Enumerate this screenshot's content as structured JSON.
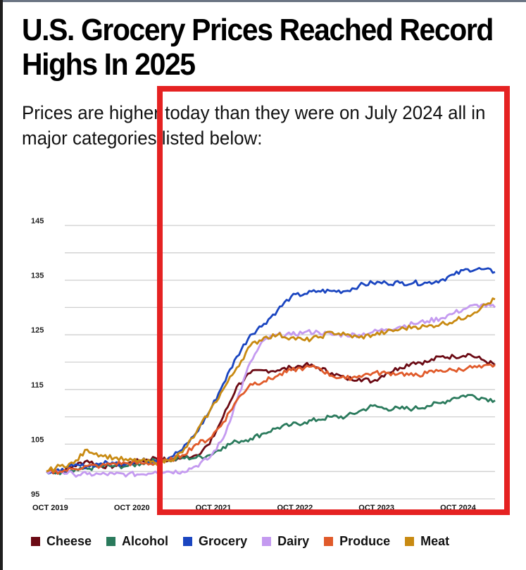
{
  "title": "U.S. Grocery Prices Reached Record Highs In 2025",
  "subtitle": "Prices are higher today than they were on July 2024 all in major categories listed below:",
  "annotation": {
    "type": "highlight-rectangle",
    "color": "#e52222"
  },
  "chart_data": {
    "type": "line",
    "title": "U.S. Grocery Prices Reached Record Highs In 2025",
    "xlabel": "",
    "ylabel": "",
    "ylim": [
      95,
      145
    ],
    "yticks": [
      95,
      105,
      115,
      125,
      135,
      145
    ],
    "grid": true,
    "x_unit": "months since Oct 2019",
    "xlim": [
      0,
      66
    ],
    "xticks": [
      {
        "x": 0,
        "label": "OCT 2019"
      },
      {
        "x": 12,
        "label": "OCT 2020"
      },
      {
        "x": 24,
        "label": "OCT 2021"
      },
      {
        "x": 36,
        "label": "OCT 2022"
      },
      {
        "x": 48,
        "label": "OCT 2023"
      },
      {
        "x": 60,
        "label": "OCT 2024"
      }
    ],
    "legend_position": "bottom",
    "x": [
      0,
      2,
      4,
      6,
      8,
      10,
      12,
      14,
      16,
      18,
      20,
      22,
      24,
      26,
      28,
      30,
      32,
      34,
      36,
      38,
      40,
      42,
      44,
      46,
      48,
      50,
      52,
      54,
      56,
      58,
      60,
      62,
      64,
      66
    ],
    "series": [
      {
        "name": "Cheese",
        "color": "#6b0a14",
        "values": [
          100,
          100,
          101,
          102,
          101,
          101,
          101.5,
          102,
          102.5,
          102,
          102.5,
          103,
          105,
          110,
          115.5,
          118,
          118.5,
          118.5,
          119,
          119.5,
          119,
          118,
          117,
          117,
          116.5,
          118,
          119,
          120,
          120,
          121,
          121,
          121.5,
          120.5,
          119.5
        ]
      },
      {
        "name": "Alcohol",
        "color": "#2a7a5c",
        "values": [
          100,
          99.5,
          100,
          100.5,
          101,
          101,
          101,
          101.5,
          102,
          102,
          102.5,
          102.5,
          103,
          104.5,
          105.5,
          106,
          107,
          108,
          108.5,
          109,
          109.5,
          110,
          110,
          111,
          112,
          111.5,
          111.5,
          111.5,
          112,
          112.5,
          113.5,
          114,
          113.5,
          113
        ]
      },
      {
        "name": "Grocery",
        "color": "#1a45c0",
        "values": [
          100,
          100,
          101,
          101,
          101.5,
          101.5,
          101.5,
          102,
          102,
          102.5,
          104,
          107,
          111,
          116,
          121,
          125,
          127,
          129.5,
          132,
          132.5,
          133,
          133,
          133,
          134,
          134.5,
          134.5,
          134.5,
          134.5,
          134.5,
          135,
          136,
          137,
          137,
          136.5
        ]
      },
      {
        "name": "Dairy",
        "color": "#c49af0",
        "values": [
          100,
          100,
          99.5,
          99.5,
          99.5,
          99.5,
          99.5,
          99.5,
          100,
          100,
          100,
          101,
          102.5,
          106,
          113,
          120,
          124,
          125,
          125,
          125.5,
          125.5,
          125,
          125,
          125,
          125.5,
          126,
          126.5,
          127,
          127.5,
          128,
          129,
          130,
          130.5,
          130
        ]
      },
      {
        "name": "Produce",
        "color": "#e05a2a",
        "values": [
          100,
          100,
          100.5,
          101,
          101,
          101.5,
          101.5,
          101.5,
          101.5,
          102,
          103,
          105,
          106,
          109,
          113,
          116,
          116.5,
          117.5,
          118.5,
          119,
          119,
          117.5,
          117,
          117.5,
          118,
          118,
          118,
          117.5,
          118,
          118.5,
          118.5,
          119,
          119,
          119.5
        ]
      },
      {
        "name": "Meat",
        "color": "#c88a12",
        "values": [
          100,
          101,
          101.5,
          104,
          103,
          102.5,
          102,
          102,
          101.5,
          102,
          103.5,
          107,
          111,
          115,
          119,
          123,
          124.5,
          125,
          124.5,
          124,
          124.5,
          125.5,
          125,
          124.5,
          125,
          125.5,
          126,
          126.5,
          126.5,
          127,
          127.5,
          128.5,
          130,
          131.5
        ]
      }
    ]
  },
  "legend": [
    {
      "label": "Cheese",
      "color": "#6b0a14"
    },
    {
      "label": "Alcohol",
      "color": "#2a7a5c"
    },
    {
      "label": "Grocery",
      "color": "#1a45c0"
    },
    {
      "label": "Dairy",
      "color": "#c49af0"
    },
    {
      "label": "Produce",
      "color": "#e05a2a"
    },
    {
      "label": "Meat",
      "color": "#c88a12"
    }
  ]
}
